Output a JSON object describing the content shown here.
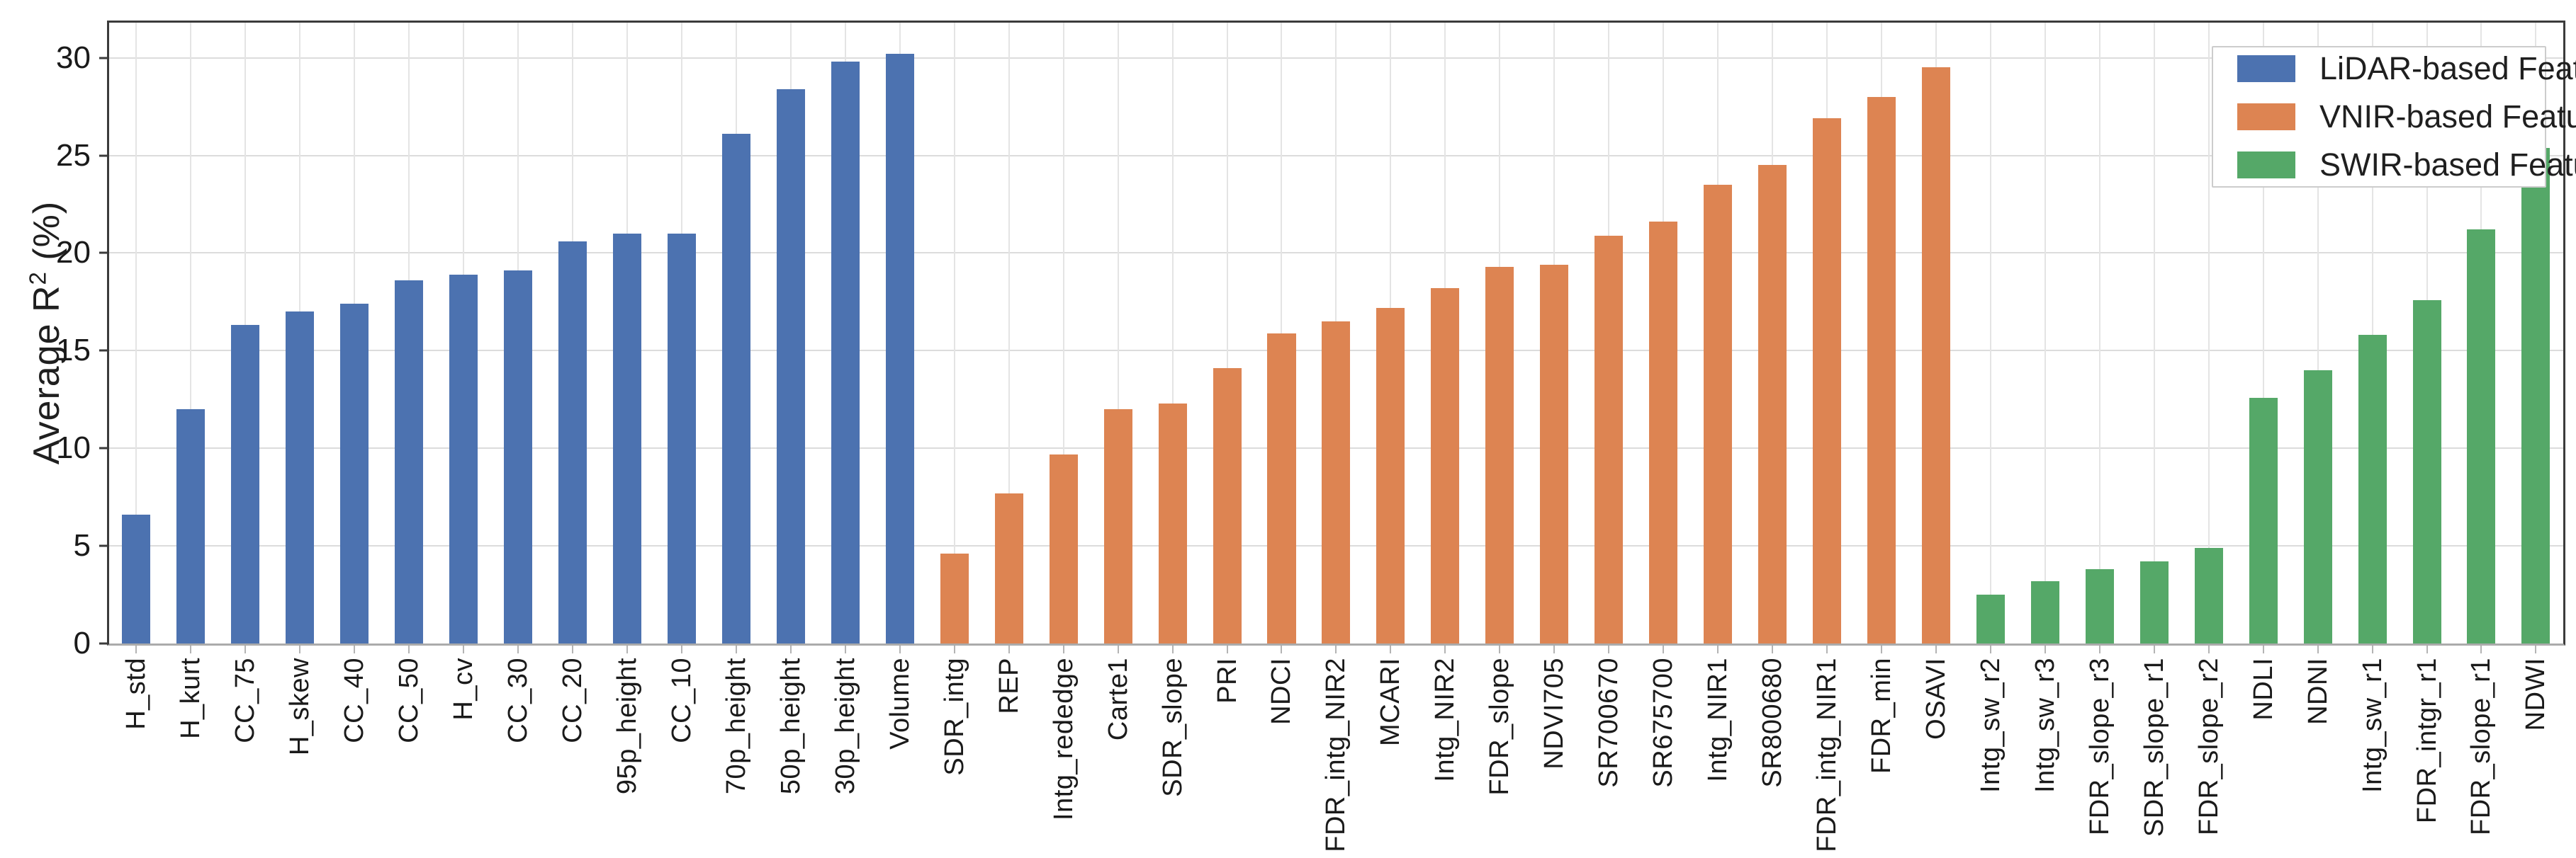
{
  "figure": {
    "y_axis_label": {
      "prefix": "Average R",
      "sup": "2",
      "suffix": " (%)"
    },
    "legend": [
      {
        "label": "LiDAR-based Features",
        "color": "#4C72B0"
      },
      {
        "label": "VNIR-based  Features",
        "color": "#DD8452"
      },
      {
        "label": "SWIR-based  Features",
        "color": "#55A868"
      }
    ]
  },
  "chart_data": {
    "type": "bar",
    "title": "",
    "xlabel": "",
    "ylabel": "Average R2 (%)",
    "ylim": [
      0,
      31.8
    ],
    "yticks": [
      0,
      5,
      10,
      15,
      20,
      25,
      30
    ],
    "grid": true,
    "legend_position": "upper right",
    "groups": [
      {
        "name": "LiDAR-based Features",
        "color": "#4C72B0"
      },
      {
        "name": "VNIR-based Features",
        "color": "#DD8452"
      },
      {
        "name": "SWIR-based Features",
        "color": "#55A868"
      }
    ],
    "bars": [
      {
        "label": "H_std",
        "value": 6.6,
        "group": "LiDAR-based Features"
      },
      {
        "label": "H_kurt",
        "value": 12.0,
        "group": "LiDAR-based Features"
      },
      {
        "label": "CC_75",
        "value": 16.3,
        "group": "LiDAR-based Features"
      },
      {
        "label": "H_skew",
        "value": 17.0,
        "group": "LiDAR-based Features"
      },
      {
        "label": "CC_40",
        "value": 17.4,
        "group": "LiDAR-based Features"
      },
      {
        "label": "CC_50",
        "value": 18.6,
        "group": "LiDAR-based Features"
      },
      {
        "label": "H_cv",
        "value": 18.9,
        "group": "LiDAR-based Features"
      },
      {
        "label": "CC_30",
        "value": 19.1,
        "group": "LiDAR-based Features"
      },
      {
        "label": "CC_20",
        "value": 20.6,
        "group": "LiDAR-based Features"
      },
      {
        "label": "95p_height",
        "value": 21.0,
        "group": "LiDAR-based Features"
      },
      {
        "label": "CC_10",
        "value": 21.0,
        "group": "LiDAR-based Features"
      },
      {
        "label": "70p_height",
        "value": 26.1,
        "group": "LiDAR-based Features"
      },
      {
        "label": "50p_height",
        "value": 28.4,
        "group": "LiDAR-based Features"
      },
      {
        "label": "30p_height",
        "value": 29.8,
        "group": "LiDAR-based Features"
      },
      {
        "label": "Volume",
        "value": 30.2,
        "group": "LiDAR-based Features"
      },
      {
        "label": "SDR_intg",
        "value": 4.6,
        "group": "VNIR-based Features"
      },
      {
        "label": "REP",
        "value": 7.7,
        "group": "VNIR-based Features"
      },
      {
        "label": "Intg_rededge",
        "value": 9.7,
        "group": "VNIR-based Features"
      },
      {
        "label": "Carte1",
        "value": 12.0,
        "group": "VNIR-based Features"
      },
      {
        "label": "SDR_slope",
        "value": 12.3,
        "group": "VNIR-based Features"
      },
      {
        "label": "PRI",
        "value": 14.1,
        "group": "VNIR-based Features"
      },
      {
        "label": "NDCI",
        "value": 15.9,
        "group": "VNIR-based Features"
      },
      {
        "label": "FDR_intg_NIR2",
        "value": 16.5,
        "group": "VNIR-based Features"
      },
      {
        "label": "MCARI",
        "value": 17.2,
        "group": "VNIR-based Features"
      },
      {
        "label": "Intg_NIR2",
        "value": 18.2,
        "group": "VNIR-based Features"
      },
      {
        "label": "FDR_slope",
        "value": 19.3,
        "group": "VNIR-based Features"
      },
      {
        "label": "NDVI705",
        "value": 19.4,
        "group": "VNIR-based Features"
      },
      {
        "label": "SR700670",
        "value": 20.9,
        "group": "VNIR-based Features"
      },
      {
        "label": "SR675700",
        "value": 21.6,
        "group": "VNIR-based Features"
      },
      {
        "label": "Intg_NIR1",
        "value": 23.5,
        "group": "VNIR-based Features"
      },
      {
        "label": "SR800680",
        "value": 24.5,
        "group": "VNIR-based Features"
      },
      {
        "label": "FDR_intg_NIR1",
        "value": 26.9,
        "group": "VNIR-based Features"
      },
      {
        "label": "FDR_min",
        "value": 28.0,
        "group": "VNIR-based Features"
      },
      {
        "label": "OSAVI",
        "value": 29.5,
        "group": "VNIR-based Features"
      },
      {
        "label": "Intg_sw_r2",
        "value": 2.5,
        "group": "SWIR-based Features"
      },
      {
        "label": "Intg_sw_r3",
        "value": 3.2,
        "group": "SWIR-based Features"
      },
      {
        "label": "FDR_slope_r3",
        "value": 3.8,
        "group": "SWIR-based Features"
      },
      {
        "label": "SDR_slope_r1",
        "value": 4.2,
        "group": "SWIR-based Features"
      },
      {
        "label": "FDR_slope_r2",
        "value": 4.9,
        "group": "SWIR-based Features"
      },
      {
        "label": "NDLI",
        "value": 12.6,
        "group": "SWIR-based Features"
      },
      {
        "label": "NDNI",
        "value": 14.0,
        "group": "SWIR-based Features"
      },
      {
        "label": "Intg_sw_r1",
        "value": 15.8,
        "group": "SWIR-based Features"
      },
      {
        "label": "FDR_intgr_r1",
        "value": 17.6,
        "group": "SWIR-based Features"
      },
      {
        "label": "FDR_slope_r1",
        "value": 21.2,
        "group": "SWIR-based Features"
      },
      {
        "label": "NDWI",
        "value": 25.4,
        "group": "SWIR-based Features"
      }
    ]
  }
}
